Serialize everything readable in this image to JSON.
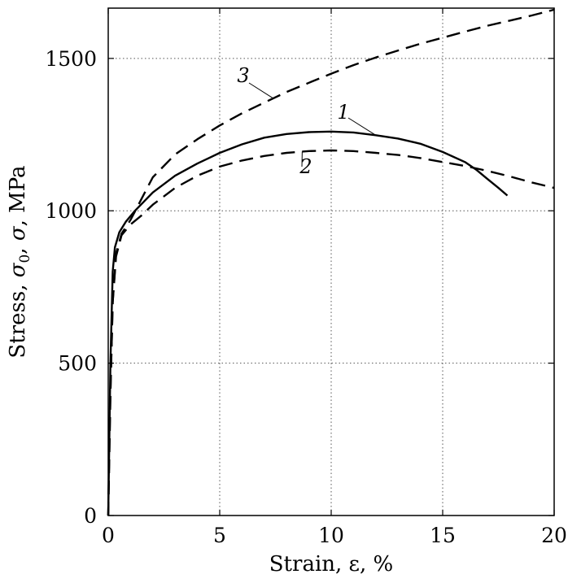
{
  "chart_data": {
    "type": "line",
    "title": "",
    "xlabel": "Strain, ε, %",
    "ylabel": "Stress, σ0, σ, MPa",
    "ylabel_parts": {
      "prefix": "Stress, ",
      "sigma": "σ",
      "sub0": "0",
      "sep": ", ",
      "sigma2": "σ",
      "suffix": ", MPa"
    },
    "xlim": [
      0,
      20
    ],
    "ylim": [
      0,
      1665
    ],
    "xticks": [
      0,
      5,
      10,
      15,
      20
    ],
    "xtick_labels": [
      "0",
      "5",
      "10",
      "15",
      "20"
    ],
    "yticks": [
      0,
      500,
      1000,
      1500
    ],
    "ytick_labels": [
      "0",
      "500",
      "1000",
      "1500"
    ],
    "grid": true,
    "series": [
      {
        "name": "1",
        "label": "1",
        "style": "solid",
        "x": [
          0,
          0.1,
          0.2,
          0.3,
          0.5,
          0.8,
          1.2,
          2,
          3,
          4,
          5,
          6,
          7,
          8,
          9,
          10,
          11,
          12,
          13,
          14,
          15,
          16,
          16.5,
          17,
          17.5,
          17.9
        ],
        "y": [
          0,
          500,
          800,
          880,
          930,
          965,
          1000,
          1060,
          1115,
          1155,
          1190,
          1218,
          1240,
          1252,
          1258,
          1260,
          1257,
          1248,
          1237,
          1220,
          1193,
          1160,
          1135,
          1105,
          1075,
          1050
        ]
      },
      {
        "name": "2",
        "label": "2",
        "style": "dashed",
        "x": [
          0,
          0.1,
          0.2,
          0.35,
          0.6,
          1,
          1.5,
          2,
          3,
          4,
          5,
          6,
          7,
          8,
          9,
          10,
          11,
          12,
          13,
          14,
          15,
          16,
          17,
          18,
          19,
          20
        ],
        "y": [
          0,
          400,
          700,
          850,
          920,
          955,
          985,
          1020,
          1075,
          1115,
          1145,
          1165,
          1180,
          1190,
          1196,
          1198,
          1196,
          1190,
          1183,
          1173,
          1160,
          1147,
          1131,
          1113,
          1093,
          1075
        ]
      },
      {
        "name": "3",
        "label": "3",
        "style": "dashed",
        "x": [
          0,
          0.1,
          0.2,
          0.35,
          0.6,
          1,
          1.5,
          2,
          3,
          4,
          5,
          6,
          7,
          8,
          9,
          10,
          11,
          12,
          13,
          14,
          15,
          16,
          17,
          18,
          19,
          20
        ],
        "y": [
          0,
          400,
          700,
          860,
          925,
          970,
          1040,
          1110,
          1185,
          1235,
          1280,
          1320,
          1355,
          1390,
          1420,
          1450,
          1478,
          1503,
          1526,
          1548,
          1568,
          1588,
          1607,
          1624,
          1641,
          1660
        ]
      }
    ]
  }
}
